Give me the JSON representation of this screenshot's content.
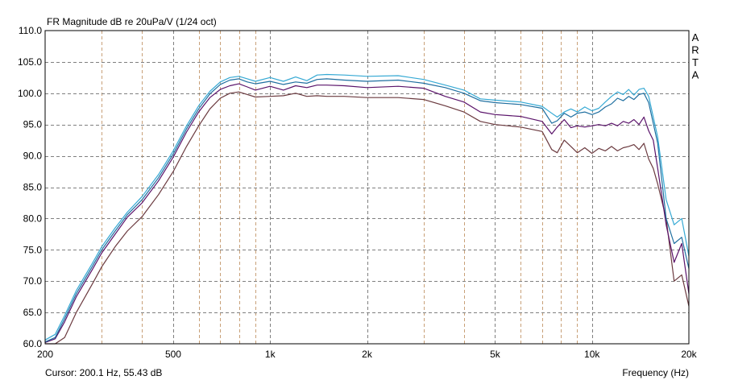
{
  "chart_data": {
    "type": "line",
    "title": "FR Magnitude dB re 20uPa/V (1/24 oct)",
    "xlabel": "Frequency (Hz)",
    "ylabel": "",
    "x_scale": "log",
    "xlim": [
      200,
      20000
    ],
    "ylim": [
      60,
      110
    ],
    "grid": true,
    "y_ticks": [
      "110.0",
      "105.0",
      "100.0",
      "95.0",
      "90.0",
      "85.0",
      "80.0",
      "75.0",
      "70.0",
      "65.0",
      "60.0"
    ],
    "y_tick_values": [
      110,
      105,
      100,
      95,
      90,
      85,
      80,
      75,
      70,
      65,
      60
    ],
    "x_ticks": [
      "200",
      "500",
      "1k",
      "2k",
      "5k",
      "10k",
      "20k"
    ],
    "x_tick_values": [
      200,
      500,
      1000,
      2000,
      5000,
      10000,
      20000
    ],
    "cursor_text": "Cursor: 200.1 Hz, 55.43 dB",
    "watermark": [
      "A",
      "R",
      "T",
      "A"
    ],
    "colors": {
      "background": "#ffffff",
      "grid_major": "#7f7f7f",
      "grid_minor": "#c8a078",
      "series": [
        "#35a9d4",
        "#1f6fa0",
        "#5a136a",
        "#6b3a3f"
      ]
    },
    "series": [
      {
        "x": [
          200,
          215,
          230,
          250,
          280,
          300,
          330,
          360,
          400,
          450,
          500,
          550,
          600,
          650,
          700,
          750,
          800,
          850,
          900,
          1000,
          1100,
          1200,
          1300,
          1400,
          1500,
          1700,
          2000,
          2500,
          3000,
          3500,
          4000,
          4500,
          5000,
          6000,
          7000,
          7500,
          7800,
          8200,
          8600,
          9000,
          9500,
          10000,
          10500,
          11000,
          11500,
          12000,
          12500,
          13000,
          13500,
          14000,
          14500,
          15000,
          16000,
          17000,
          18000,
          19000,
          20000
        ],
        "y": [
          60.6,
          61.5,
          64.5,
          68.5,
          72.8,
          75.5,
          78.5,
          81.0,
          83.5,
          87.0,
          90.8,
          94.8,
          98.0,
          100.3,
          101.8,
          102.5,
          102.7,
          102.3,
          101.9,
          102.5,
          101.9,
          102.6,
          102.0,
          102.9,
          103.0,
          102.9,
          102.7,
          102.8,
          102.2,
          101.3,
          100.5,
          99.1,
          98.9,
          98.6,
          97.9,
          96.8,
          96.2,
          97.0,
          97.5,
          97.0,
          97.8,
          97.2,
          97.6,
          98.6,
          99.5,
          100.2,
          99.8,
          100.6,
          99.7,
          100.6,
          100.8,
          99.5,
          93.0,
          83.0,
          79.0,
          80.0,
          74.0
        ]
      },
      {
        "x": [
          200,
          215,
          230,
          250,
          280,
          300,
          330,
          360,
          400,
          450,
          500,
          550,
          600,
          650,
          700,
          750,
          800,
          850,
          900,
          1000,
          1100,
          1200,
          1300,
          1400,
          1500,
          1700,
          2000,
          2500,
          3000,
          3500,
          4000,
          4500,
          5000,
          6000,
          7000,
          7500,
          7800,
          8200,
          8600,
          9000,
          9500,
          10000,
          10500,
          11000,
          11500,
          12000,
          12500,
          13000,
          13500,
          14000,
          14500,
          15000,
          16000,
          17000,
          18000,
          19000,
          20000
        ],
        "y": [
          60.3,
          61.0,
          64.0,
          68.0,
          72.3,
          75.0,
          78.0,
          80.6,
          83.0,
          86.5,
          90.3,
          94.3,
          97.5,
          99.9,
          101.4,
          102.1,
          102.3,
          101.8,
          101.5,
          101.9,
          101.4,
          101.8,
          101.6,
          102.2,
          102.3,
          102.1,
          101.9,
          102.1,
          101.6,
          100.9,
          100.0,
          98.8,
          98.5,
          98.2,
          97.6,
          95.2,
          95.6,
          96.8,
          96.2,
          96.8,
          97.0,
          96.6,
          97.0,
          97.8,
          98.3,
          99.2,
          98.8,
          99.5,
          99.0,
          99.8,
          100.0,
          98.5,
          92.0,
          80.0,
          76.0,
          77.0,
          72.0
        ]
      },
      {
        "x": [
          200,
          215,
          230,
          250,
          280,
          300,
          330,
          360,
          400,
          450,
          500,
          550,
          600,
          650,
          700,
          750,
          800,
          850,
          900,
          1000,
          1100,
          1200,
          1300,
          1400,
          1500,
          1700,
          2000,
          2500,
          3000,
          3500,
          4000,
          4500,
          5000,
          6000,
          7000,
          7500,
          7800,
          8200,
          8600,
          9000,
          9500,
          10000,
          10500,
          11000,
          11500,
          12000,
          12500,
          13000,
          13500,
          14000,
          14500,
          15000,
          15500,
          16000,
          17000,
          18000,
          19000,
          20000
        ],
        "y": [
          60.2,
          60.8,
          63.5,
          67.5,
          71.8,
          74.5,
          77.5,
          80.2,
          82.5,
          86.0,
          89.8,
          93.8,
          97.0,
          99.3,
          100.6,
          101.2,
          101.5,
          101.0,
          100.5,
          101.1,
          100.5,
          101.2,
          100.9,
          101.3,
          101.3,
          101.2,
          100.9,
          101.1,
          100.8,
          99.5,
          98.6,
          97.0,
          96.6,
          96.3,
          95.5,
          93.5,
          94.6,
          95.8,
          94.5,
          94.8,
          94.6,
          94.8,
          95.0,
          94.8,
          95.2,
          94.8,
          95.5,
          95.2,
          95.8,
          95.0,
          96.2,
          94.0,
          92.5,
          88.0,
          79.0,
          73.0,
          76.0,
          68.0
        ]
      },
      {
        "x": [
          200,
          215,
          230,
          250,
          280,
          300,
          330,
          360,
          400,
          450,
          500,
          550,
          600,
          650,
          700,
          750,
          800,
          850,
          900,
          1000,
          1100,
          1200,
          1300,
          1400,
          1500,
          1700,
          2000,
          2500,
          3000,
          3500,
          4000,
          4500,
          5000,
          6000,
          7000,
          7500,
          7800,
          8200,
          8600,
          9000,
          9500,
          10000,
          10500,
          11000,
          11500,
          12000,
          12500,
          13000,
          13500,
          14000,
          14500,
          15000,
          15500,
          16000,
          17000,
          18000,
          19000,
          20000
        ],
        "y": [
          59.5,
          59.6,
          61.0,
          65.0,
          69.5,
          72.3,
          75.5,
          78.0,
          80.3,
          83.8,
          87.5,
          91.5,
          94.8,
          97.5,
          99.2,
          100.0,
          100.2,
          99.8,
          99.4,
          99.5,
          99.6,
          100.0,
          99.5,
          99.6,
          99.5,
          99.5,
          99.3,
          99.3,
          99.0,
          98.0,
          97.0,
          95.5,
          95.0,
          94.6,
          93.9,
          91.0,
          90.5,
          92.5,
          91.5,
          90.5,
          91.3,
          90.4,
          91.2,
          90.8,
          91.5,
          90.8,
          91.3,
          91.5,
          91.8,
          91.0,
          92.0,
          89.5,
          88.0,
          85.5,
          80.0,
          70.0,
          71.0,
          66.0
        ]
      }
    ]
  }
}
